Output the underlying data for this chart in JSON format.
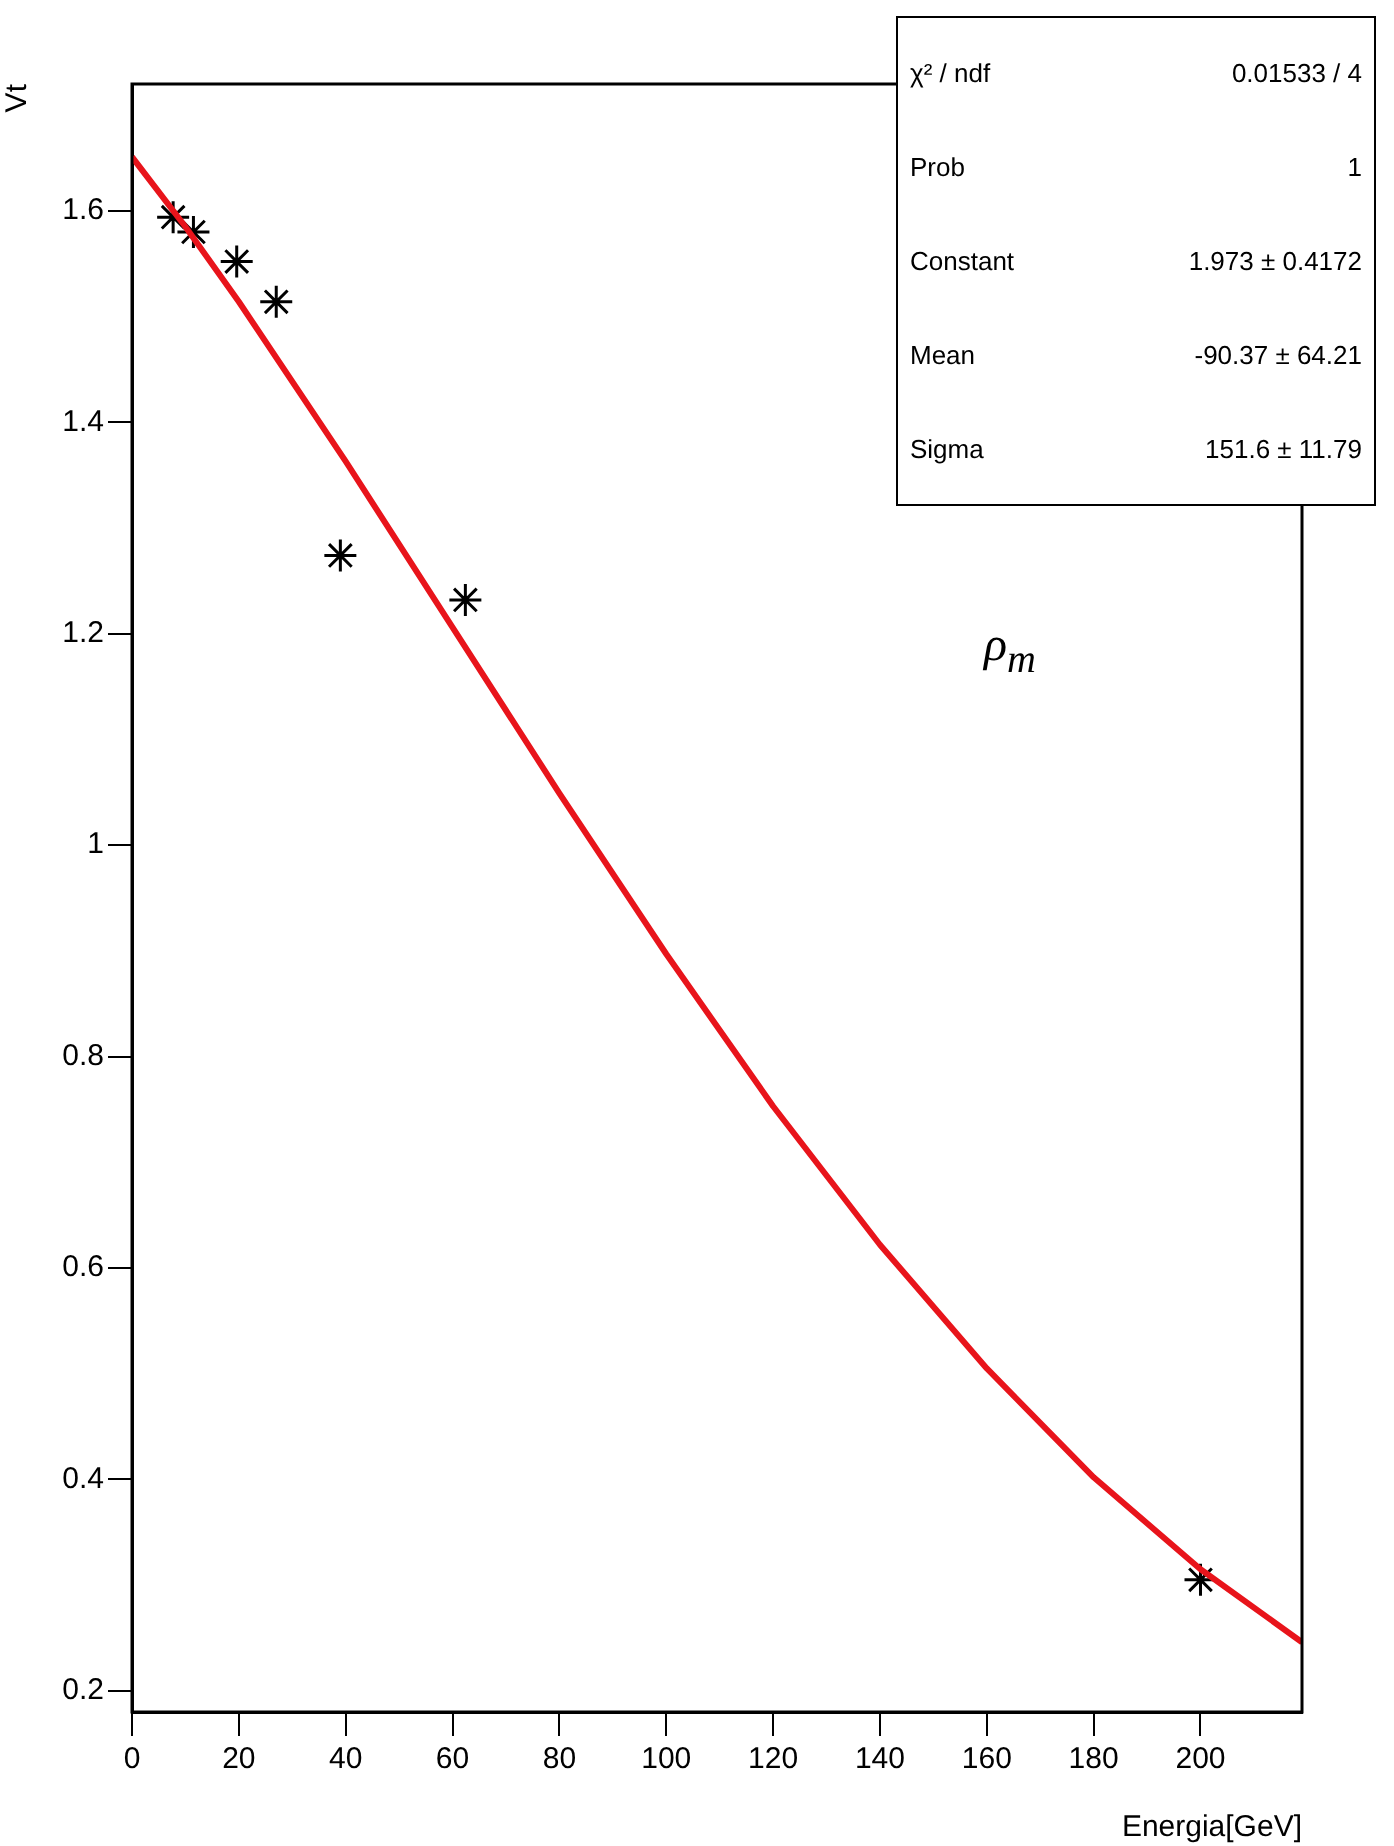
{
  "chart_data": {
    "type": "scatter",
    "xlabel": "Energia[GeV]",
    "ylabel": "Vt",
    "xlim": [
      0,
      219
    ],
    "xticks": [
      0,
      20,
      40,
      60,
      80,
      100,
      120,
      140,
      160,
      180,
      200
    ],
    "ylim": [
      0.18,
      1.72
    ],
    "yticks": [
      0.2,
      0.4,
      0.6,
      0.8,
      {
        "value": 1,
        "label": "1"
      },
      1.2,
      1.4,
      1.6
    ],
    "grid": false,
    "legend": false,
    "series": [
      {
        "type": "line",
        "color": "#e8141b",
        "marker": "none",
        "line_style": "solid",
        "x": [
          0,
          10,
          20,
          40,
          60,
          80,
          100,
          120,
          140,
          160,
          180,
          200,
          219
        ],
        "values": [
          1.651,
          1.585,
          1.514,
          1.363,
          1.206,
          1.049,
          0.897,
          0.753,
          0.622,
          0.505,
          0.402,
          0.315,
          0.246
        ]
      },
      {
        "type": "scatter",
        "color": "#000000",
        "marker": "cross",
        "x": [
          7.7,
          11.5,
          19.6,
          27,
          39,
          62.4,
          200
        ],
        "values": [
          1.594,
          1.58,
          1.552,
          1.514,
          1.274,
          1.232,
          0.305
        ]
      }
    ],
    "annotations": [
      "χ² / ndf   0.01533 / 4",
      "Prob   1",
      "Constant   1.973 ± 0.4172",
      "Mean   -90.37 ± 64.21",
      "Sigma   151.6 ± 11.79",
      "ρ$_{m}$"
    ]
  }
}
